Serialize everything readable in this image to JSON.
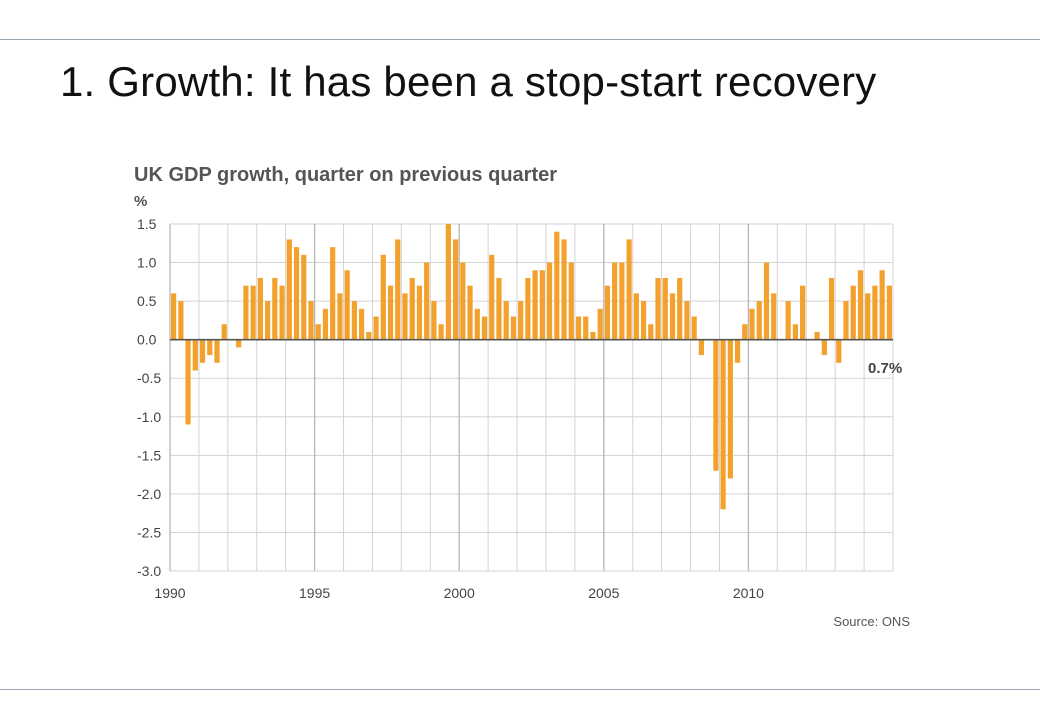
{
  "slide": {
    "title": "1. Growth: It has been a stop-start recovery"
  },
  "chart_data": {
    "type": "bar",
    "title": "UK GDP growth, quarter on previous quarter",
    "ylabel": "%",
    "xlabel": "",
    "ylim": [
      -3.0,
      1.5
    ],
    "yticks": [
      "1.5",
      "1.0",
      "0.5",
      "0.0",
      "-0.5",
      "-1.0",
      "-1.5",
      "-2.0",
      "-2.5",
      "-3.0"
    ],
    "xticks": [
      "1990",
      "1995",
      "2000",
      "2005",
      "2010"
    ],
    "x_start": "1990 Q1",
    "frequency": "quarterly",
    "x_end_year": 2015,
    "values": [
      0.6,
      0.5,
      -1.1,
      -0.4,
      -0.3,
      -0.2,
      -0.3,
      0.2,
      0.0,
      -0.1,
      0.7,
      0.7,
      0.8,
      0.5,
      0.8,
      0.7,
      1.3,
      1.2,
      1.1,
      0.5,
      0.2,
      0.4,
      1.2,
      0.6,
      0.9,
      0.5,
      0.4,
      0.1,
      0.3,
      1.1,
      0.7,
      1.3,
      0.6,
      0.8,
      0.7,
      1.0,
      0.5,
      0.2,
      1.5,
      1.3,
      1.0,
      0.7,
      0.4,
      0.3,
      1.1,
      0.8,
      0.5,
      0.3,
      0.5,
      0.8,
      0.9,
      0.9,
      1.0,
      1.4,
      1.3,
      1.0,
      0.3,
      0.3,
      0.1,
      0.4,
      0.7,
      1.0,
      1.0,
      1.3,
      0.6,
      0.5,
      0.2,
      0.8,
      0.8,
      0.6,
      0.8,
      0.5,
      0.3,
      -0.2,
      0.0,
      -1.7,
      -2.2,
      -1.8,
      -0.3,
      0.2,
      0.4,
      0.5,
      1.0,
      0.6,
      0.0,
      0.5,
      0.2,
      0.7,
      0.0,
      0.1,
      -0.2,
      0.8,
      -0.3,
      0.5,
      0.7,
      0.9,
      0.6,
      0.7,
      0.9,
      0.7
    ],
    "annotation": "0.7%",
    "source": "Source: ONS",
    "colors": {
      "bar": "#f3a12d",
      "grid": "#d3d3d3",
      "zero_line": "#555555",
      "axis_text": "#444444",
      "title_text": "#555555"
    },
    "grid": true
  }
}
